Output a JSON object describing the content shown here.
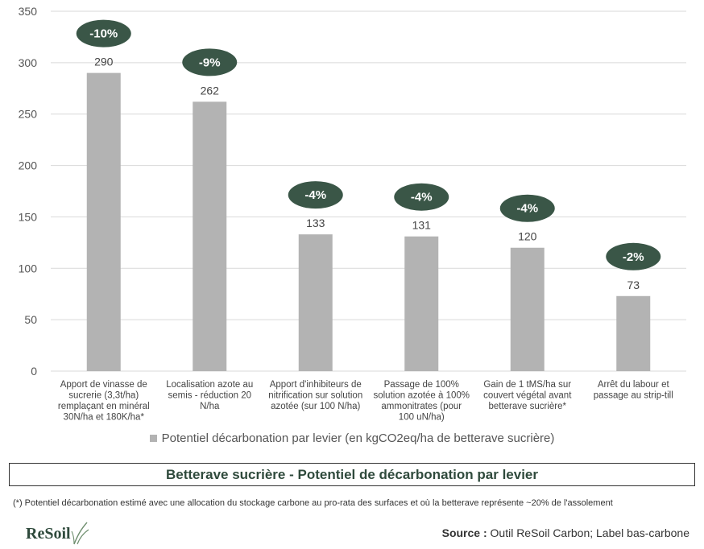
{
  "chart_data": {
    "type": "bar",
    "categories": [
      [
        "Apport de vinasse de",
        "sucrerie (3,3t/ha)",
        "remplaçant en minéral",
        "30N/ha et 180K/ha*"
      ],
      [
        "Localisation azote au",
        "semis - réduction 20",
        "N/ha"
      ],
      [
        "Apport d'inhibiteurs de",
        "nitrification sur solution",
        "azotée (sur 100 N/ha)"
      ],
      [
        "Passage de 100%",
        "solution azotée à 100%",
        "ammonitrates (pour",
        "100 uN/ha)"
      ],
      [
        "Gain de 1 tMS/ha sur",
        "couvert végétal avant",
        "betterave sucrière*"
      ],
      [
        "Arrêt du labour et",
        "passage au strip-till"
      ]
    ],
    "series": [
      {
        "name": "Potentiel décarbonation par levier (en kgCO2eq/ha de betterave sucrière)",
        "values": [
          290,
          262,
          133,
          131,
          120,
          73
        ]
      }
    ],
    "value_labels": [
      "290",
      "262",
      "133",
      "131",
      "120",
      "73"
    ],
    "percent_badges": [
      "-10%",
      "-9%",
      "-4%",
      "-4%",
      "-4%",
      "-2%"
    ],
    "yticks": [
      "0",
      "50",
      "100",
      "150",
      "200",
      "250",
      "300",
      "350"
    ],
    "ylim": [
      0,
      350
    ],
    "legend_position": "bottom-center"
  },
  "colors": {
    "bar": "#b3b3b3",
    "badge": "#3a5647",
    "badge_text": "#ffffff",
    "grid": "#d9d9d9"
  },
  "legend": {
    "label": "Potentiel décarbonation par levier (en kgCO2eq/ha de betterave sucrière)"
  },
  "title": "Betterave sucrière - Potentiel de décarbonation par levier",
  "footnote": "(*) Potentiel décarbonation estimé avec une allocation du stockage carbone au pro-rata des surfaces et où la betterave représente ~20% de l'assolement",
  "logo": {
    "text": "ReSoil"
  },
  "source": {
    "label": "Source :",
    "text": "Outil ReSoil Carbon; Label bas-carbone"
  }
}
